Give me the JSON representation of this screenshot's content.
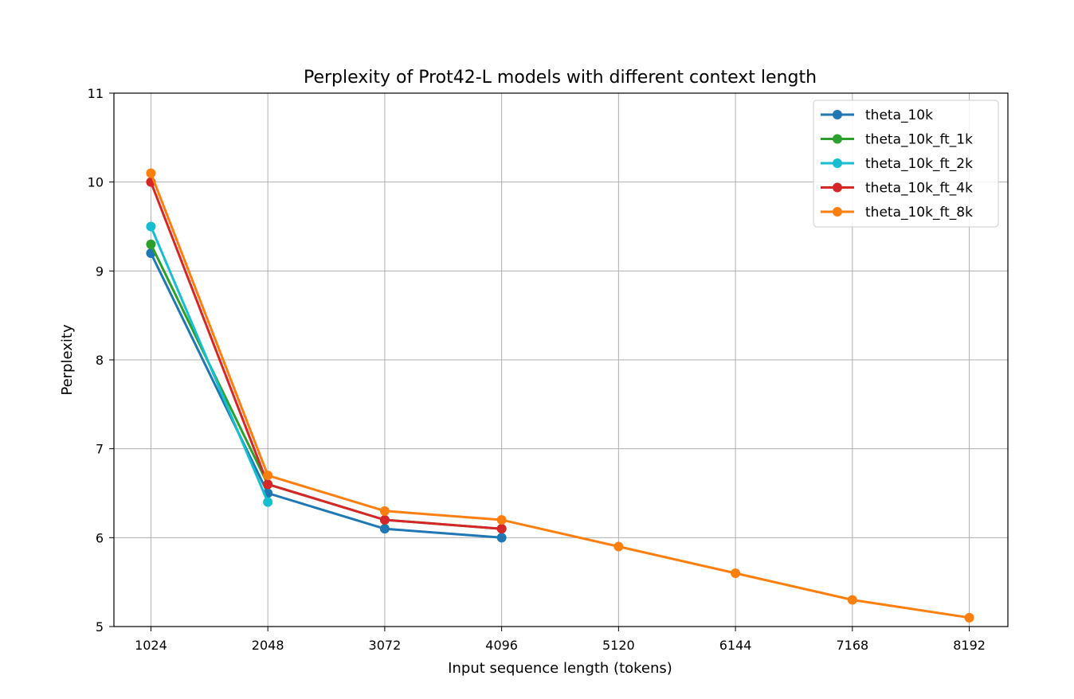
{
  "chart_data": {
    "type": "line",
    "title": "Perplexity of Prot42-L models with different context length",
    "xlabel": "Input sequence length (tokens)",
    "ylabel": "Perplexity",
    "x_ticks": [
      1024,
      2048,
      3072,
      4096,
      5120,
      6144,
      7168,
      8192
    ],
    "xlim": [
      700,
      8530
    ],
    "ylim": [
      5,
      11
    ],
    "y_ticks": [
      5,
      6,
      7,
      8,
      9,
      10,
      11
    ],
    "grid": true,
    "legend_position": "top-right",
    "series": [
      {
        "name": "theta_10k",
        "color": "#1f77b4",
        "x": [
          1024,
          2048,
          3072,
          4096
        ],
        "y": [
          9.2,
          6.5,
          6.1,
          6.0
        ]
      },
      {
        "name": "theta_10k_ft_1k",
        "color": "#2ca02c",
        "x": [
          1024,
          2048,
          3072,
          4096
        ],
        "y": [
          9.3,
          6.6,
          6.2,
          6.1
        ]
      },
      {
        "name": "theta_10k_ft_2k",
        "color": "#17becf",
        "x": [
          1024,
          2048
        ],
        "y": [
          9.5,
          6.4
        ]
      },
      {
        "name": "theta_10k_ft_4k",
        "color": "#d62728",
        "x": [
          1024,
          2048,
          3072,
          4096
        ],
        "y": [
          10.0,
          6.6,
          6.2,
          6.1
        ]
      },
      {
        "name": "theta_10k_ft_8k",
        "color": "#ff7f0e",
        "x": [
          1024,
          2048,
          3072,
          4096,
          5120,
          6144,
          7168,
          8192
        ],
        "y": [
          10.1,
          6.7,
          6.3,
          6.2,
          5.9,
          5.6,
          5.3,
          5.1
        ]
      }
    ]
  }
}
